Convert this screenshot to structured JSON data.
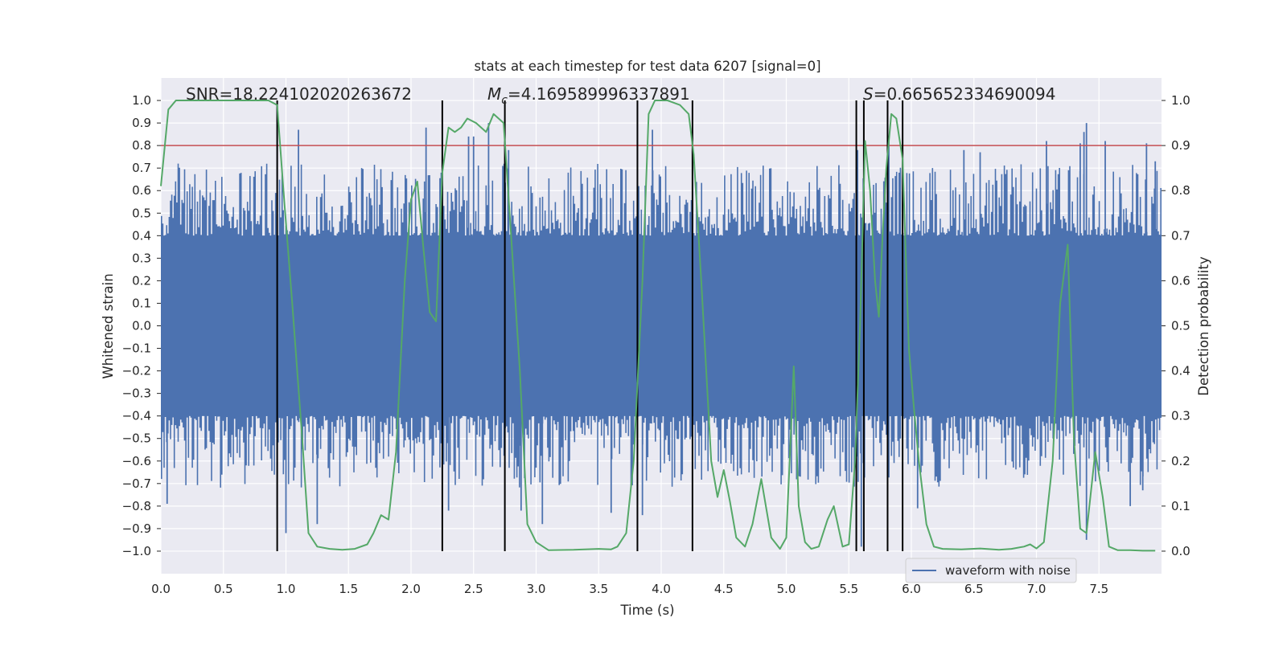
{
  "chart_data": {
    "type": "line",
    "title": "stats at each timestep for test data 6207 [signal=0]",
    "xlabel": "Time (s)",
    "ylabel_left": "Whitened strain",
    "ylabel_right": "Detection probability",
    "xlim": [
      0.0,
      8.0
    ],
    "ylim_left": [
      -1.1,
      1.1
    ],
    "ylim_right": [
      -0.05,
      1.05
    ],
    "x_ticks": [
      0.0,
      0.5,
      1.0,
      1.5,
      2.0,
      2.5,
      3.0,
      3.5,
      4.0,
      4.5,
      5.0,
      5.5,
      6.0,
      6.5,
      7.0,
      7.5
    ],
    "x_tick_labels": [
      "0.0",
      "0.5",
      "1.0",
      "1.5",
      "2.0",
      "2.5",
      "3.0",
      "3.5",
      "4.0",
      "4.5",
      "5.0",
      "5.5",
      "6.0",
      "6.5",
      "7.0",
      "7.5"
    ],
    "y_left_ticks": [
      1.0,
      0.9,
      0.8,
      0.7,
      0.6,
      0.5,
      0.4,
      0.3,
      0.2,
      0.1,
      0.0,
      -0.1,
      -0.2,
      -0.3,
      -0.4,
      -0.5,
      -0.6,
      -0.7,
      -0.8,
      -0.9,
      -1.0
    ],
    "y_left_tick_labels": [
      "1.0",
      "0.9",
      "0.8",
      "0.7",
      "0.6",
      "0.5",
      "0.4",
      "0.3",
      "0.2",
      "0.1",
      "0.0",
      "−0.1",
      "−0.2",
      "−0.3",
      "−0.4",
      "−0.5",
      "−0.6",
      "−0.7",
      "−0.8",
      "−0.9",
      "−1.0"
    ],
    "y_right_ticks": [
      1.0,
      0.9,
      0.8,
      0.7,
      0.6,
      0.5,
      0.4,
      0.3,
      0.2,
      0.1,
      0.0
    ],
    "y_right_tick_labels": [
      "1.0",
      "0.9",
      "0.8",
      "0.7",
      "0.6",
      "0.5",
      "0.4",
      "0.3",
      "0.2",
      "0.1",
      "0.0"
    ],
    "grid": true,
    "background_color": "#eaeaf2",
    "annotations": {
      "snr": "SNR=18.224102020263672",
      "mc_symbol": "M",
      "mc_subscript": "c",
      "mc_value": "=4.169589996337891",
      "s_symbol": "S",
      "s_value": "=0.665652334690094"
    },
    "legend": {
      "position": "lower-right",
      "entries": [
        "waveform with noise"
      ]
    },
    "series": [
      {
        "name": "waveform with noise",
        "axis": "left",
        "color": "#4c72b0",
        "style": "dense-noise",
        "sample_count": 780,
        "envelope_core": 0.4,
        "positive_spikes": [
          {
            "x": 0.93,
            "y": 0.98
          },
          {
            "x": 1.1,
            "y": 0.87
          },
          {
            "x": 2.12,
            "y": 0.88
          },
          {
            "x": 2.25,
            "y": 0.62
          },
          {
            "x": 2.46,
            "y": 0.84
          },
          {
            "x": 2.5,
            "y": 0.84
          },
          {
            "x": 2.62,
            "y": 0.9
          },
          {
            "x": 2.78,
            "y": 0.78
          },
          {
            "x": 3.82,
            "y": 0.62
          },
          {
            "x": 3.93,
            "y": 0.87
          },
          {
            "x": 4.25,
            "y": 0.78
          },
          {
            "x": 5.57,
            "y": 0.78
          },
          {
            "x": 5.62,
            "y": 0.82
          },
          {
            "x": 5.82,
            "y": 0.83
          },
          {
            "x": 6.42,
            "y": 0.78
          },
          {
            "x": 6.55,
            "y": 0.77
          },
          {
            "x": 7.08,
            "y": 0.82
          },
          {
            "x": 7.35,
            "y": 0.81
          },
          {
            "x": 7.38,
            "y": 0.86
          },
          {
            "x": 7.4,
            "y": 0.9
          },
          {
            "x": 7.55,
            "y": 0.82
          },
          {
            "x": 7.88,
            "y": 0.81
          },
          {
            "x": 7.95,
            "y": 0.73
          }
        ],
        "negative_spikes": [
          {
            "x": 0.05,
            "y": -0.79
          },
          {
            "x": 0.93,
            "y": -0.86
          },
          {
            "x": 1.0,
            "y": -0.92
          },
          {
            "x": 1.25,
            "y": -0.88
          },
          {
            "x": 2.3,
            "y": -0.82
          },
          {
            "x": 2.88,
            "y": -0.82
          },
          {
            "x": 3.05,
            "y": -0.88
          },
          {
            "x": 3.6,
            "y": -0.83
          },
          {
            "x": 3.85,
            "y": -0.84
          },
          {
            "x": 5.56,
            "y": -1.0
          },
          {
            "x": 5.6,
            "y": -0.98
          },
          {
            "x": 6.05,
            "y": -0.81
          },
          {
            "x": 7.4,
            "y": -0.95
          },
          {
            "x": 7.75,
            "y": -0.8
          },
          {
            "x": 7.85,
            "y": -0.73
          }
        ]
      },
      {
        "name": "",
        "axis": "right",
        "color": "#55a868",
        "x": [
          0.0,
          0.06,
          0.12,
          0.3,
          0.5,
          0.7,
          0.86,
          0.93,
          0.98,
          1.05,
          1.13,
          1.18,
          1.25,
          1.35,
          1.45,
          1.55,
          1.65,
          1.7,
          1.76,
          1.82,
          1.88,
          1.95,
          2.0,
          2.05,
          2.1,
          2.15,
          2.2,
          2.25,
          2.3,
          2.35,
          2.4,
          2.45,
          2.52,
          2.6,
          2.66,
          2.7,
          2.74,
          2.8,
          2.87,
          2.93,
          3.0,
          3.1,
          3.3,
          3.5,
          3.6,
          3.65,
          3.72,
          3.78,
          3.85,
          3.9,
          3.95,
          4.05,
          4.15,
          4.22,
          4.26,
          4.32,
          4.4,
          4.45,
          4.5,
          4.55,
          4.6,
          4.67,
          4.73,
          4.8,
          4.88,
          4.95,
          5.0,
          5.06,
          5.1,
          5.15,
          5.2,
          5.26,
          5.33,
          5.38,
          5.45,
          5.5,
          5.55,
          5.59,
          5.63,
          5.67,
          5.71,
          5.74,
          5.77,
          5.8,
          5.84,
          5.88,
          5.93,
          5.98,
          6.02,
          6.06,
          6.12,
          6.18,
          6.25,
          6.4,
          6.55,
          6.7,
          6.8,
          6.9,
          6.95,
          7.0,
          7.06,
          7.13,
          7.19,
          7.25,
          7.3,
          7.35,
          7.4,
          7.47,
          7.53,
          7.58,
          7.65,
          7.75,
          7.85,
          7.95
        ],
        "y": [
          0.81,
          0.98,
          1.0,
          1.0,
          1.0,
          1.0,
          1.0,
          0.99,
          0.8,
          0.55,
          0.25,
          0.04,
          0.01,
          0.005,
          0.003,
          0.005,
          0.015,
          0.04,
          0.08,
          0.07,
          0.22,
          0.6,
          0.78,
          0.82,
          0.67,
          0.53,
          0.51,
          0.84,
          0.94,
          0.93,
          0.94,
          0.96,
          0.95,
          0.93,
          0.97,
          0.96,
          0.95,
          0.7,
          0.4,
          0.06,
          0.02,
          0.002,
          0.003,
          0.005,
          0.004,
          0.01,
          0.04,
          0.2,
          0.6,
          0.97,
          1.0,
          1.0,
          0.99,
          0.97,
          0.88,
          0.6,
          0.2,
          0.12,
          0.18,
          0.11,
          0.03,
          0.01,
          0.06,
          0.16,
          0.03,
          0.005,
          0.03,
          0.41,
          0.1,
          0.02,
          0.005,
          0.01,
          0.07,
          0.1,
          0.01,
          0.015,
          0.2,
          0.5,
          0.91,
          0.8,
          0.6,
          0.52,
          0.7,
          0.85,
          0.97,
          0.96,
          0.87,
          0.45,
          0.32,
          0.2,
          0.06,
          0.01,
          0.005,
          0.004,
          0.006,
          0.003,
          0.005,
          0.01,
          0.015,
          0.006,
          0.02,
          0.2,
          0.55,
          0.68,
          0.25,
          0.05,
          0.04,
          0.22,
          0.12,
          0.01,
          0.002,
          0.002,
          0.001,
          0.001
        ]
      },
      {
        "name": "",
        "axis": "left",
        "type": "hline",
        "color": "#c44e52",
        "y": 0.8
      }
    ],
    "vlines": {
      "color": "#000000",
      "x": [
        0.93,
        2.25,
        2.75,
        3.81,
        4.25,
        5.56,
        5.62,
        5.81,
        5.93
      ],
      "y_range": [
        -1.0,
        1.0
      ]
    }
  }
}
